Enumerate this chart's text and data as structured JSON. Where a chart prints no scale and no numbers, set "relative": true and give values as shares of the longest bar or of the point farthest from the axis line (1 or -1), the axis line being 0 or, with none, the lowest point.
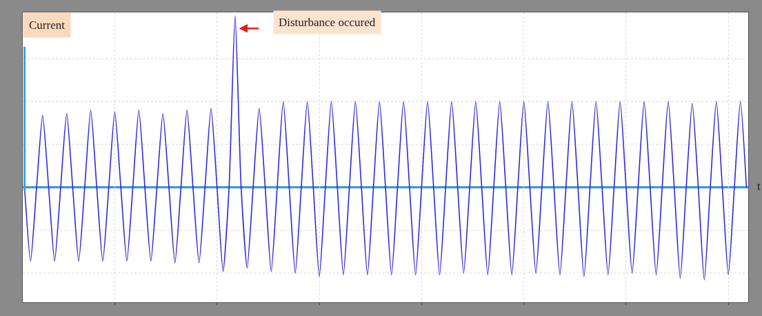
{
  "chart_data": {
    "type": "line",
    "relative": true,
    "tick_labels": false,
    "grid": true,
    "line_style": "solid",
    "marker": "none",
    "ref_lines": [
      {
        "axis": "y",
        "value": 0,
        "color": "#2b8fd6"
      }
    ],
    "annotations": [
      "Current",
      "Disturbance occured",
      "t"
    ],
    "categories": [
      null,
      null,
      null,
      null,
      null,
      null,
      null,
      null,
      null,
      null,
      null,
      null,
      null,
      null,
      null,
      null,
      null,
      null,
      null,
      null,
      null,
      null,
      null,
      null,
      null,
      null,
      null,
      null,
      null,
      null,
      null,
      null,
      null,
      null,
      null,
      null,
      null,
      null,
      null,
      null,
      null,
      null,
      null,
      null,
      null,
      null,
      null,
      null,
      null,
      null,
      null,
      null,
      null,
      null,
      null,
      null,
      null,
      null,
      null,
      null,
      null,
      null,
      null,
      null,
      null,
      null,
      null,
      null,
      null,
      null,
      null,
      null,
      null,
      null,
      null,
      null,
      null,
      null,
      null,
      null,
      null,
      null,
      null,
      null,
      null,
      null,
      null,
      null,
      null,
      null,
      null,
      null,
      null,
      null,
      null,
      null,
      null,
      null,
      null,
      null,
      null,
      null,
      null,
      null,
      null,
      null,
      null,
      null,
      null,
      null,
      null,
      null,
      null,
      null,
      null,
      null,
      null,
      null,
      null,
      null,
      null
    ],
    "series": [
      {
        "color": "#2a2ad8",
        "values": [
          0,
          -0.43,
          0,
          0.42,
          0,
          -0.43,
          0,
          0.43,
          0,
          -0.43,
          0,
          0.45,
          0,
          -0.43,
          0,
          0.44,
          0,
          -0.43,
          0,
          0.45,
          0,
          -0.43,
          0,
          0.43,
          0,
          -0.44,
          0,
          0.45,
          0,
          -0.44,
          0,
          0.46,
          0,
          -0.49,
          0,
          1.0,
          0,
          -0.47,
          0,
          0.46,
          0,
          -0.49,
          0,
          0.5,
          0,
          -0.5,
          0,
          0.5,
          0,
          -0.52,
          0,
          0.5,
          0,
          -0.51,
          0,
          0.5,
          0,
          -0.51,
          0,
          0.5,
          0,
          -0.51,
          0,
          0.5,
          0,
          -0.51,
          0,
          0.5,
          0,
          -0.51,
          0,
          0.5,
          0,
          -0.5,
          0,
          0.5,
          0,
          -0.51,
          0,
          0.5,
          0,
          -0.51,
          0,
          0.5,
          0,
          -0.5,
          0,
          0.5,
          0,
          -0.51,
          0,
          0.5,
          0,
          -0.52,
          0,
          0.5,
          0,
          -0.51,
          0,
          0.5,
          0,
          -0.5,
          0,
          0.5,
          0,
          -0.51,
          0,
          0.5,
          0,
          -0.53,
          0,
          0.49,
          0,
          -0.54,
          0,
          0.5,
          0,
          -0.51,
          0,
          0.5,
          0
        ]
      }
    ]
  }
}
